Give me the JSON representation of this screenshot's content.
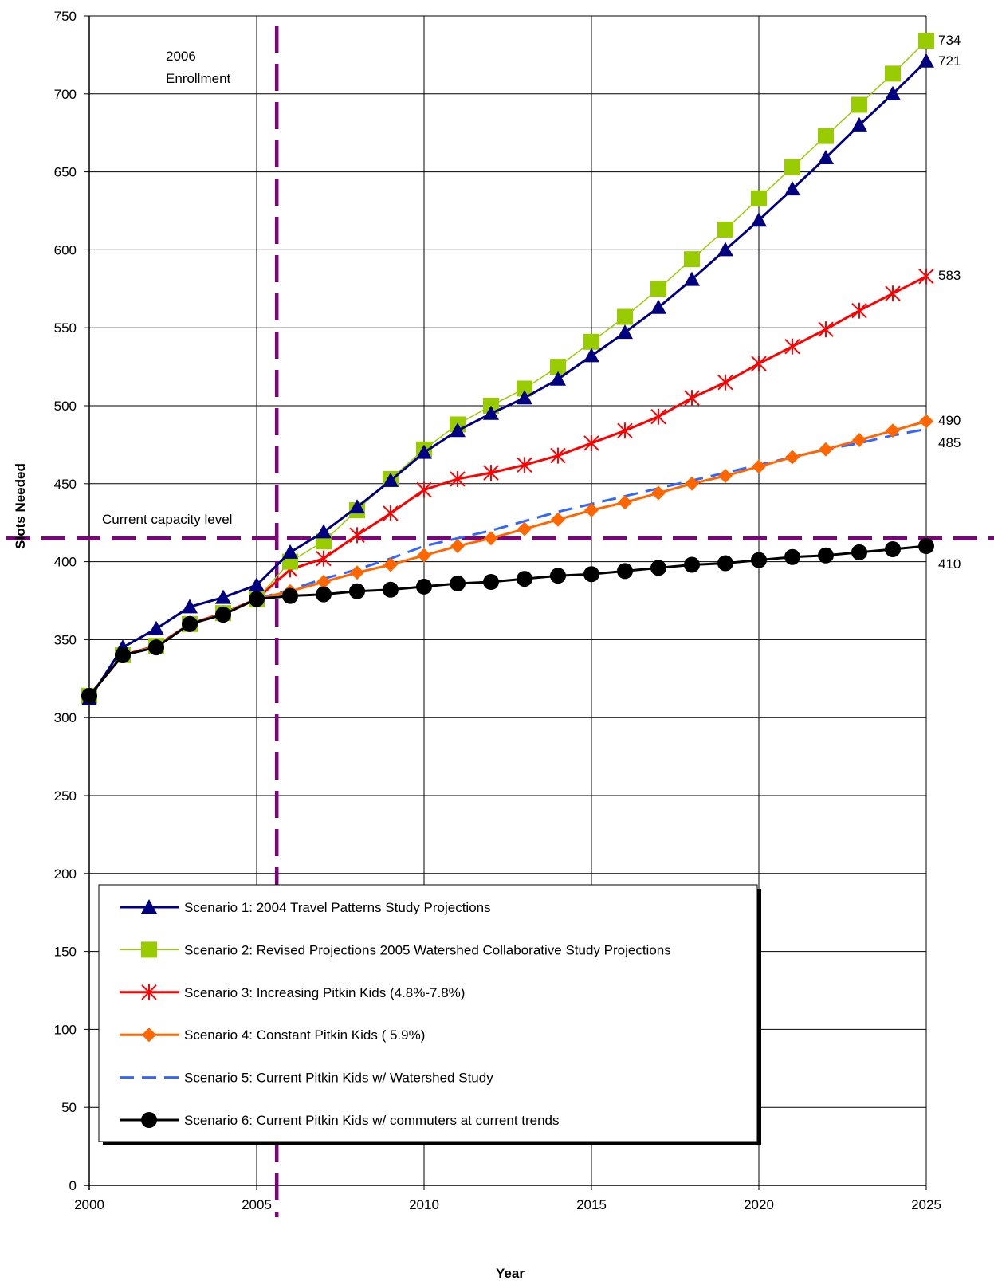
{
  "chart_data": {
    "type": "line",
    "xlabel": "Year",
    "ylabel": "Slots Needed",
    "xlim": [
      2000,
      2025
    ],
    "ylim": [
      0,
      750
    ],
    "x_ticks": [
      2000,
      2005,
      2010,
      2015,
      2020,
      2025
    ],
    "y_ticks": [
      0,
      50,
      100,
      150,
      200,
      250,
      300,
      350,
      400,
      450,
      500,
      550,
      600,
      650,
      700,
      750
    ],
    "grid": true,
    "legend_position": "bottom-left",
    "x": [
      2000,
      2001,
      2002,
      2003,
      2004,
      2005,
      2006,
      2007,
      2008,
      2009,
      2010,
      2011,
      2012,
      2013,
      2014,
      2015,
      2016,
      2017,
      2018,
      2019,
      2020,
      2021,
      2022,
      2023,
      2024,
      2025
    ],
    "series": [
      {
        "name": "Scenario 1:  2004 Travel Patterns Study Projections",
        "color": "#000080",
        "marker": "triangle",
        "values": [
          312,
          345,
          357,
          371,
          377,
          385,
          406,
          419,
          435,
          452,
          470,
          484,
          495,
          505,
          517,
          532,
          547,
          563,
          581,
          600,
          619,
          639,
          659,
          680,
          700,
          721
        ]
      },
      {
        "name": "Scenario 2:  Revised Projections 2005 Watershed Collaborative Study Projections",
        "color": "#99cc00",
        "marker": "square",
        "values": [
          314,
          340,
          346,
          360,
          367,
          376,
          400,
          413,
          433,
          453,
          472,
          488,
          500,
          511,
          525,
          541,
          557,
          575,
          594,
          613,
          633,
          653,
          673,
          693,
          713,
          734
        ]
      },
      {
        "name": "Scenario 3:  Increasing Pitkin Kids (4.8%-7.8%)",
        "color": "#ff0000",
        "marker": "star",
        "values": [
          314,
          340,
          346,
          360,
          367,
          376,
          395,
          402,
          417,
          431,
          446,
          453,
          457,
          462,
          468,
          476,
          484,
          493,
          505,
          515,
          527,
          538,
          549,
          561,
          572,
          583
        ]
      },
      {
        "name": "Scenario 4:  Constant Pitkin Kids ( 5.9%)",
        "color": "#ff6600",
        "marker": "diamond",
        "values": [
          314,
          340,
          346,
          360,
          367,
          376,
          381,
          387,
          393,
          398,
          404,
          410,
          415,
          421,
          427,
          433,
          438,
          444,
          450,
          455,
          461,
          467,
          472,
          478,
          484,
          490
        ]
      },
      {
        "name": "Scenario 5:  Current Pitkin Kids w/ Watershed Study",
        "color": "#3366ff",
        "marker": "dash",
        "values": [
          314,
          340,
          346,
          360,
          367,
          376,
          382,
          389,
          395,
          402,
          410,
          415,
          420,
          426,
          432,
          437,
          442,
          447,
          452,
          457,
          462,
          467,
          472,
          476,
          481,
          485
        ]
      },
      {
        "name": "Scenario 6:  Current Pitkin Kids w/ commuters at current trends",
        "color": "#000000",
        "marker": "circle",
        "values": [
          314,
          340,
          345,
          360,
          366,
          376,
          378,
          379,
          381,
          382,
          384,
          386,
          387,
          389,
          391,
          392,
          394,
          396,
          398,
          399,
          401,
          403,
          404,
          406,
          408,
          410
        ]
      }
    ],
    "end_labels": [
      "734",
      "721",
      "583",
      "490",
      "485",
      "410"
    ],
    "annotations": {
      "vline_year": 2005.6,
      "vline_label_line1": "2006",
      "vline_label_line2": "Enrollment",
      "hline_value": 415,
      "hline_label": "Current capacity level",
      "reference_color": "#800080"
    }
  }
}
